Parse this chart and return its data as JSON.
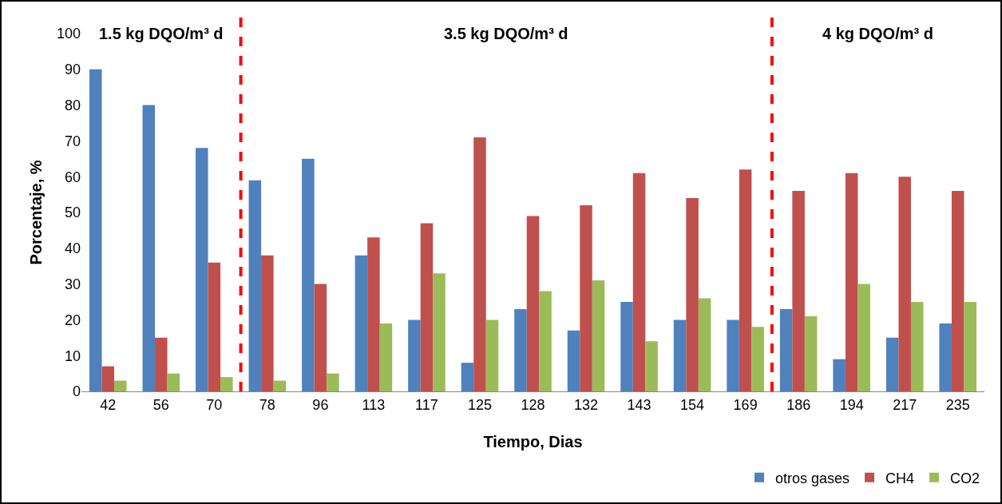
{
  "chart_data": {
    "type": "bar",
    "xlabel": "Tiempo, Dias",
    "ylabel": "Porcentaje, %",
    "categories": [
      "42",
      "56",
      "70",
      "78",
      "96",
      "113",
      "117",
      "125",
      "128",
      "132",
      "143",
      "154",
      "169",
      "186",
      "194",
      "217",
      "235"
    ],
    "series": [
      {
        "name": "otros gases",
        "color": "#4f81bd",
        "values": [
          90,
          80,
          68,
          59,
          65,
          38,
          20,
          8,
          23,
          17,
          25,
          20,
          20,
          23,
          9,
          15,
          19
        ]
      },
      {
        "name": "CH4",
        "color": "#c0504d",
        "values": [
          7,
          15,
          36,
          38,
          30,
          43,
          47,
          71,
          49,
          52,
          61,
          54,
          62,
          56,
          61,
          60,
          56
        ]
      },
      {
        "name": "CO2",
        "color": "#9bbb59",
        "values": [
          3,
          5,
          4,
          3,
          5,
          19,
          33,
          20,
          28,
          31,
          14,
          26,
          18,
          21,
          30,
          25,
          25
        ]
      }
    ],
    "ylim": [
      0,
      100
    ],
    "yticks": [
      0,
      10,
      20,
      30,
      40,
      50,
      60,
      70,
      80,
      90,
      100
    ],
    "grid": false,
    "legend": "bottom right",
    "annotations": [
      "1.5 kg DQO/m³ d",
      "3.5 kg DQO/m³ d",
      "4 kg DQO/m³ d"
    ]
  }
}
